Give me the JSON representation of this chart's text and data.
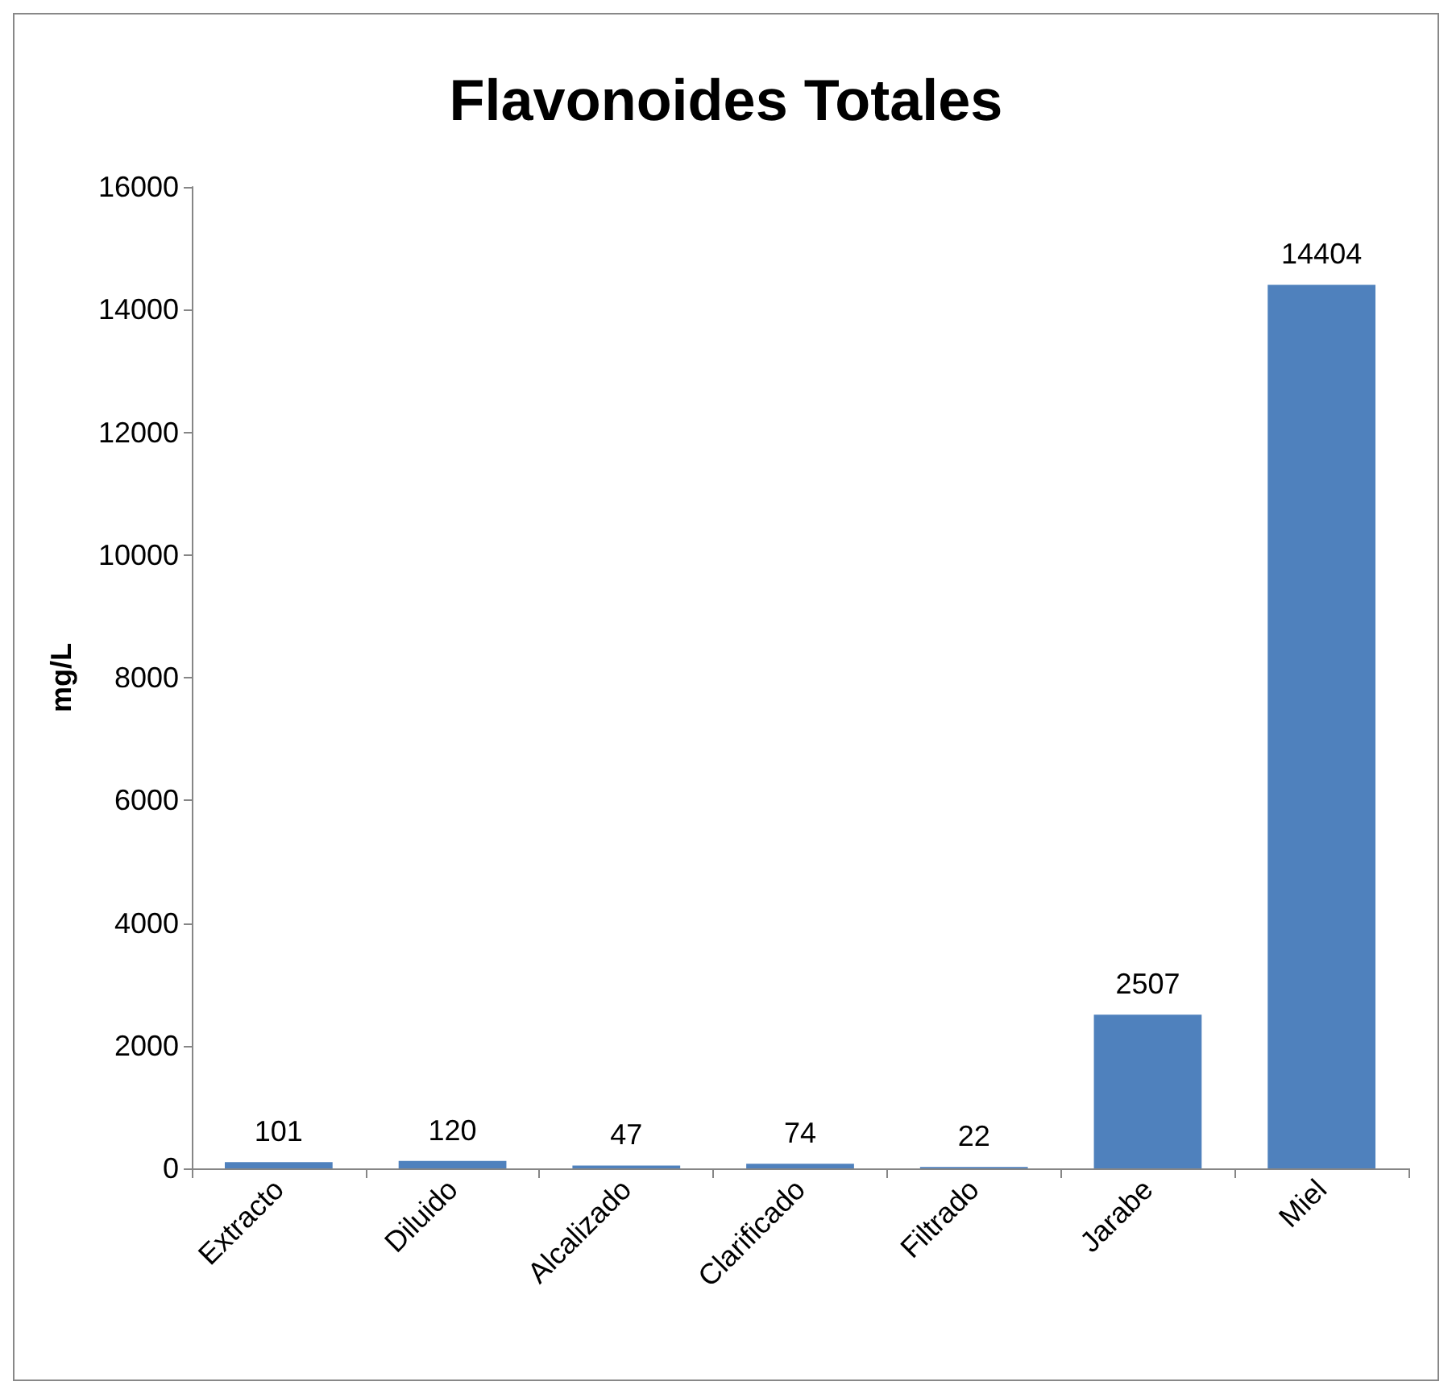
{
  "chart_data": {
    "type": "bar",
    "title": "Flavonoides Totales",
    "ylabel": "mg/L",
    "categories": [
      "Extracto",
      "Diluido",
      "Alcalizado",
      "Clarificado",
      "Filtrado",
      "Jarabe",
      "Miel"
    ],
    "values": [
      101,
      120,
      47,
      74,
      22,
      2507,
      14404
    ],
    "color": "#4f81bd",
    "ylim": [
      0,
      16000
    ],
    "yticks": [
      0,
      2000,
      4000,
      6000,
      8000,
      10000,
      12000,
      14000,
      16000
    ],
    "grid": false,
    "data_labels": true
  }
}
